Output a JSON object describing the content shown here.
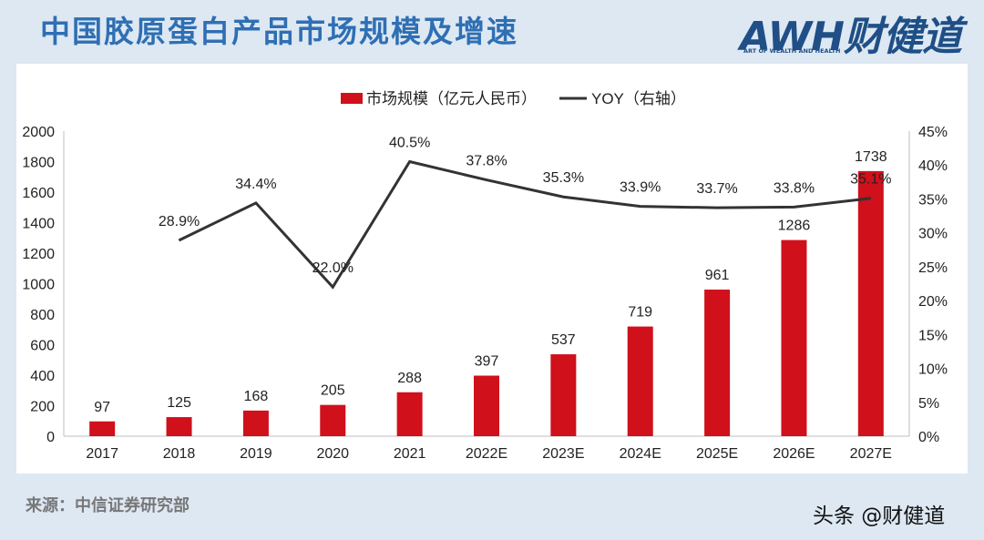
{
  "header": {
    "title": "中国胶原蛋白产品市场规模及增速"
  },
  "logo": {
    "main": "AWH财健道",
    "sub": "ART OF WEALTH AND HEALTH"
  },
  "footer": {
    "source": "来源：中信证券研究部",
    "watermark": "头条 @财健道"
  },
  "colors": {
    "bar": "#d0101b",
    "line": "#333333",
    "title": "#2f6fb3",
    "background": "#dde8f3"
  },
  "chart_data": {
    "type": "bar",
    "categories": [
      "2017",
      "2018",
      "2019",
      "2020",
      "2021",
      "2022E",
      "2023E",
      "2024E",
      "2025E",
      "2026E",
      "2027E"
    ],
    "series": [
      {
        "name": "市场规模（亿元人民币）",
        "type": "bar",
        "axis": "left",
        "values": [
          97,
          125,
          168,
          205,
          288,
          397,
          537,
          719,
          961,
          1286,
          1738
        ],
        "labels": [
          "97",
          "125",
          "168",
          "205",
          "288",
          "397",
          "537",
          "719",
          "961",
          "1286",
          "1738"
        ]
      },
      {
        "name": "YOY（右轴）",
        "type": "line",
        "axis": "right",
        "values": [
          null,
          28.9,
          34.4,
          22.0,
          40.5,
          37.8,
          35.3,
          33.9,
          33.7,
          33.8,
          35.1
        ],
        "labels": [
          "",
          "28.9%",
          "34.4%",
          "22.0%",
          "40.5%",
          "37.8%",
          "35.3%",
          "33.9%",
          "33.7%",
          "33.8%",
          "35.1%"
        ]
      }
    ],
    "ylim": [
      0,
      2000
    ],
    "yticks": [
      "0",
      "200",
      "400",
      "600",
      "800",
      "1000",
      "1200",
      "1400",
      "1600",
      "1800",
      "2000"
    ],
    "y2lim": [
      0,
      45
    ],
    "y2ticks": [
      "0%",
      "5%",
      "10%",
      "15%",
      "20%",
      "25%",
      "30%",
      "35%",
      "40%",
      "45%"
    ],
    "legend": {
      "position": "top-center",
      "bar_label": "市场规模（亿元人民币）",
      "line_label": "YOY（右轴）"
    },
    "grid": false
  }
}
